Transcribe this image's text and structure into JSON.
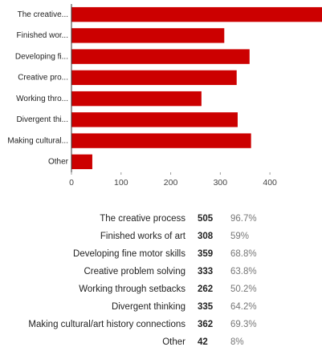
{
  "chart_data": {
    "type": "bar",
    "orientation": "horizontal",
    "categories": [
      "The creative...",
      "Finished wor...",
      "Developing fi...",
      "Creative pro...",
      "Working thro...",
      "Divergent thi...",
      "Making cultural...",
      "Other"
    ],
    "values": [
      505,
      308,
      359,
      333,
      262,
      335,
      362,
      42
    ],
    "color": "#cc0000",
    "xlim": [
      0,
      505
    ],
    "xticks": [
      0,
      100,
      200,
      300,
      400
    ]
  },
  "table": {
    "rows": [
      [
        "The creative process",
        505,
        "96.7%"
      ],
      [
        "Finished works of art",
        308,
        "59%"
      ],
      [
        "Developing fine motor skills",
        359,
        "68.8%"
      ],
      [
        "Creative problem solving",
        333,
        "63.8%"
      ],
      [
        "Working through setbacks",
        262,
        "50.2%"
      ],
      [
        "Divergent thinking",
        335,
        "64.2%"
      ],
      [
        "Making cultural/art history connections",
        362,
        "69.3%"
      ],
      [
        "Other",
        42,
        "8%"
      ]
    ]
  }
}
